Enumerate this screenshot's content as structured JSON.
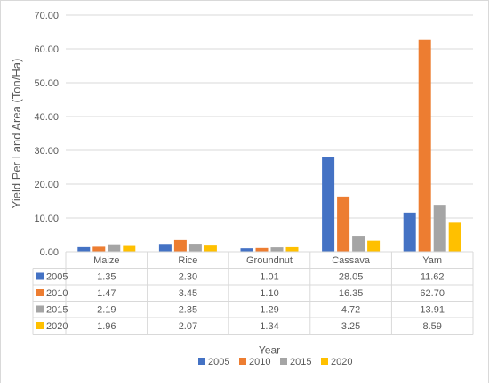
{
  "chart_data": {
    "type": "bar",
    "categories": [
      "Maize",
      "Rice",
      "Groundnut",
      "Cassava",
      "Yam"
    ],
    "series": [
      {
        "name": "2005",
        "color": "#4472C4",
        "values": [
          1.35,
          2.3,
          1.01,
          28.05,
          11.62
        ],
        "labels": [
          "1.35",
          "2.30",
          "1.01",
          "28.05",
          "11.62"
        ]
      },
      {
        "name": "2010",
        "color": "#ED7D31",
        "values": [
          1.47,
          3.45,
          1.1,
          16.35,
          62.7
        ],
        "labels": [
          "1.47",
          "3.45",
          "1.10",
          "16.35",
          "62.70"
        ]
      },
      {
        "name": "2015",
        "color": "#A5A5A5",
        "values": [
          2.19,
          2.35,
          1.29,
          4.72,
          13.91
        ],
        "labels": [
          "2.19",
          "2.35",
          "1.29",
          "4.72",
          "13.91"
        ]
      },
      {
        "name": "2020",
        "color": "#FFC000",
        "values": [
          1.96,
          2.07,
          1.34,
          3.25,
          8.59
        ],
        "labels": [
          "1.96",
          "2.07",
          "1.34",
          "3.25",
          "8.59"
        ]
      }
    ],
    "ylabel": "Yield Per Land Area (Ton/Ha)",
    "xlabel": "Year",
    "ylim": [
      0,
      70
    ],
    "yticks": [
      "0.00",
      "10.00",
      "20.00",
      "30.00",
      "40.00",
      "50.00",
      "60.00",
      "70.00"
    ],
    "grid": true,
    "legend_position": "bottom",
    "data_table": true
  }
}
